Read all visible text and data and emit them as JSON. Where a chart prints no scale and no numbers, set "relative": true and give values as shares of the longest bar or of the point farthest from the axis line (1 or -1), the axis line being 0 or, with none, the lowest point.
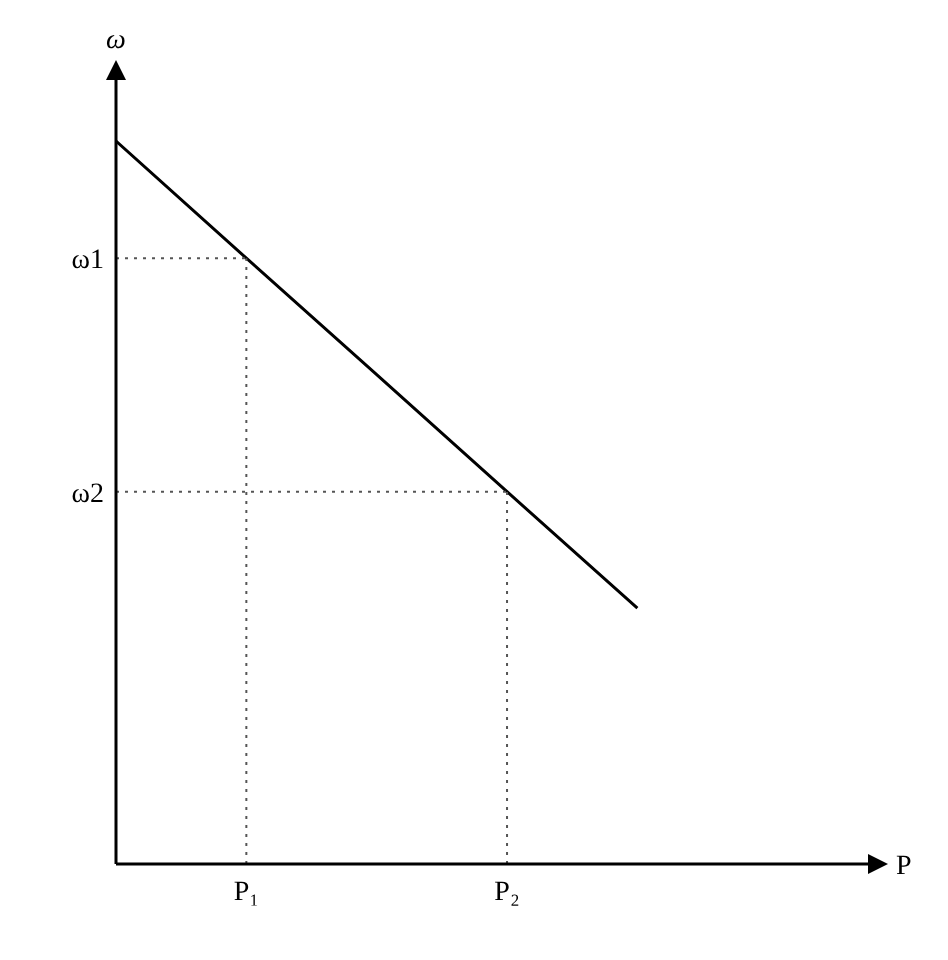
{
  "chart_data": {
    "type": "line",
    "relative": true,
    "xlabel": "P",
    "ylabel": "ω",
    "categories": [
      null,
      "P₁",
      null,
      "P₂",
      null,
      null
    ],
    "series": [
      {
        "color": "#000000",
        "values": [
          1,
          0.838,
          0.677,
          0.515,
          0.354,
          null
        ]
      }
    ],
    "ref_lines": [
      {
        "axis": "y",
        "value": 0.838,
        "label": "ω1",
        "line_style": "dotted",
        "color": "#555555"
      },
      {
        "axis": "y",
        "value": 0.515,
        "label": "ω2",
        "line_style": "dotted",
        "color": "#555555"
      },
      {
        "axis": "x",
        "value": "P₁",
        "line_style": "dotted",
        "color": "#555555"
      },
      {
        "axis": "x",
        "value": "P₂",
        "line_style": "dotted",
        "color": "#555555"
      }
    ],
    "grid": false,
    "legend": false,
    "marker": "none",
    "line_style": "solid"
  }
}
